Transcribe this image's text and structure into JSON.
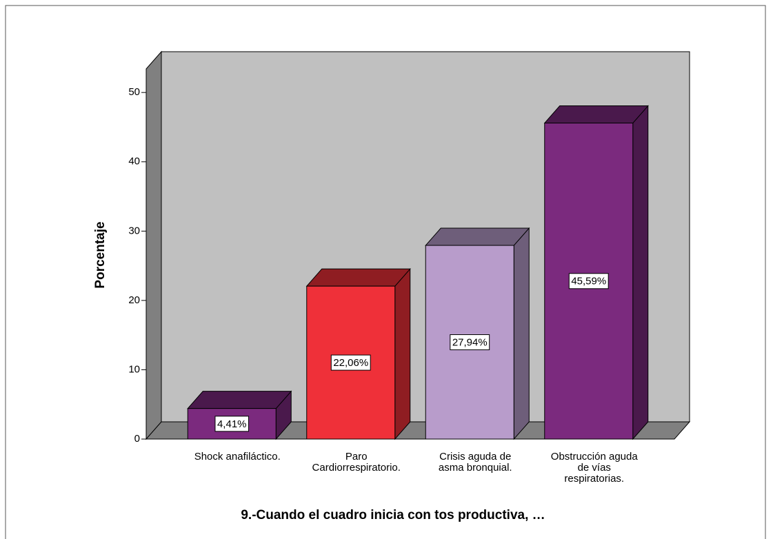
{
  "chart_data": {
    "type": "bar3d",
    "x_label": "9.-Cuando el cuadro inicia con tos productiva, …",
    "y_label": "Porcentaje",
    "categories": [
      "Shock anafiláctico.",
      "Paro\nCardiorrespiratorio.",
      "Crisis aguda de\nasma bronquial.",
      "Obstrucción aguda\nde vías\nrespiratorias."
    ],
    "values": [
      4.41,
      22.06,
      27.94,
      45.59
    ],
    "value_labels": [
      "4,41%",
      "22,06%",
      "27,94%",
      "45,59%"
    ],
    "colors": [
      "#7b2a7e",
      "#ef3039",
      "#b89ccb",
      "#7b2a7e"
    ],
    "ylim": [
      0,
      53.4
    ],
    "yticks": [
      0,
      10,
      20,
      30,
      40,
      50
    ],
    "grid": false
  }
}
